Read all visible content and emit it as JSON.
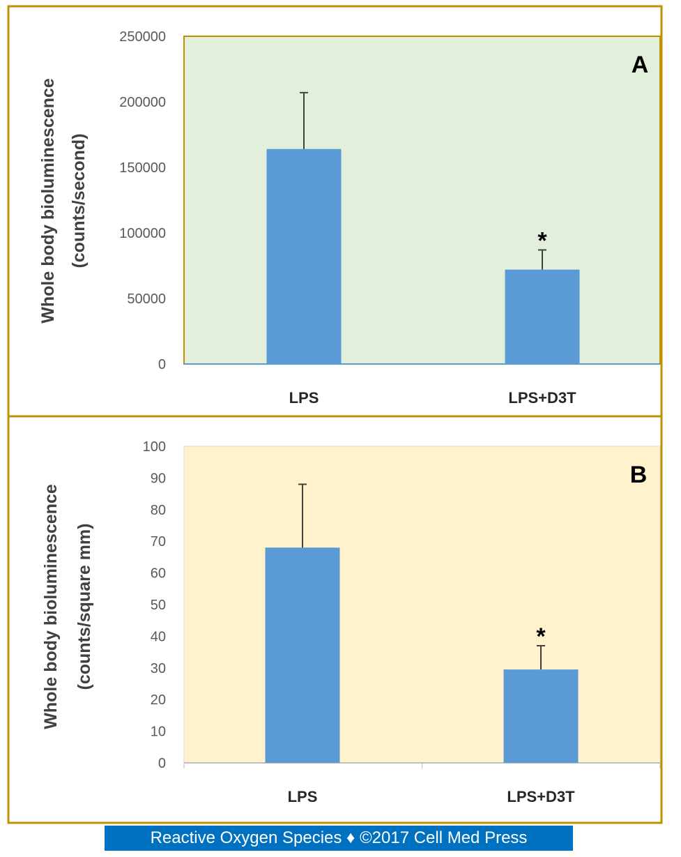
{
  "chart_data": [
    {
      "type": "bar",
      "panel_label": "A",
      "categories": [
        "LPS",
        "LPS+D3T"
      ],
      "values": [
        164000,
        72000
      ],
      "error_upper": [
        43000,
        15000
      ],
      "annotations": [
        "",
        "*"
      ],
      "ylabel_lines": [
        "Whole body bioluminescence",
        "(counts/second)"
      ],
      "ylim": [
        0,
        250000
      ],
      "yticks": [
        0,
        50000,
        100000,
        150000,
        200000,
        250000
      ],
      "ytick_labels": [
        "0",
        "50000",
        "100000",
        "150000",
        "200000",
        "250000"
      ],
      "plot_background": "#e2efda",
      "bar_color": "#5b9bd5",
      "frame_color": "#bf9000"
    },
    {
      "type": "bar",
      "panel_label": "B",
      "categories": [
        "LPS",
        "LPS+D3T"
      ],
      "values": [
        68,
        29.5
      ],
      "error_upper": [
        20,
        7.5
      ],
      "annotations": [
        "",
        "*"
      ],
      "ylabel_lines": [
        "Whole body bioluminescence",
        "(counts/square mm)"
      ],
      "ylim": [
        0,
        100
      ],
      "yticks": [
        0,
        10,
        20,
        30,
        40,
        50,
        60,
        70,
        80,
        90,
        100
      ],
      "ytick_labels": [
        "0",
        "10",
        "20",
        "30",
        "40",
        "50",
        "60",
        "70",
        "80",
        "90",
        "100"
      ],
      "plot_background": "#fff2cc",
      "bar_color": "#5b9bd5",
      "frame_color": "#bf9000"
    }
  ],
  "footer": {
    "text": "Reactive Oxygen Species ♦ ©2017 Cell Med Press",
    "background": "#0070c0"
  }
}
